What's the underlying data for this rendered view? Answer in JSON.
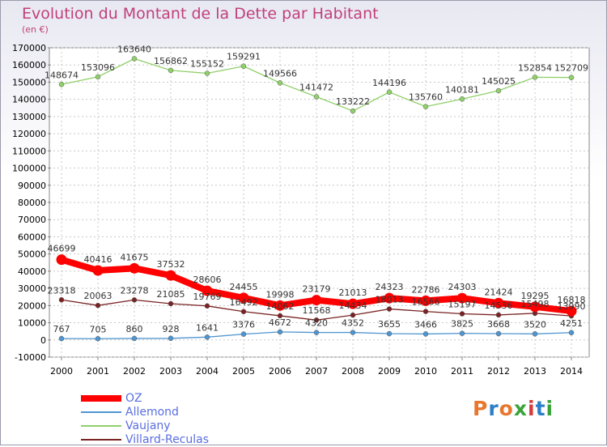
{
  "header": {
    "title": "Evolution du Montant de la Dette par Habitant",
    "subtitle": "(en €)"
  },
  "logo": {
    "text": "Proxiti",
    "colors": [
      "#e8772e",
      "#2a7fc8",
      "#e8772e",
      "#3aa33a",
      "#d83a3a",
      "#2a7fc8",
      "#3aa33a"
    ]
  },
  "chart_data": {
    "type": "line",
    "x": [
      "2000",
      "2001",
      "2002",
      "2003",
      "2004",
      "2005",
      "2006",
      "2007",
      "2008",
      "2009",
      "2010",
      "2011",
      "2012",
      "2013",
      "2014"
    ],
    "ylim": [
      -10000,
      170000
    ],
    "yticks": [
      -10000,
      0,
      10000,
      20000,
      30000,
      40000,
      50000,
      60000,
      70000,
      80000,
      90000,
      100000,
      110000,
      120000,
      130000,
      140000,
      150000,
      160000,
      170000
    ],
    "grid": true,
    "legend_position": "bottom-left",
    "series": [
      {
        "name": "OZ",
        "color": "#ff0000",
        "values": [
          46699,
          40416,
          41675,
          37532,
          28606,
          24455,
          19998,
          23179,
          21013,
          24323,
          22786,
          24303,
          21424,
          19295,
          16818
        ]
      },
      {
        "name": "Allemond",
        "color": "#4f95d0",
        "values": [
          767,
          705,
          860,
          928,
          1641,
          3376,
          4672,
          4320,
          4352,
          3655,
          3466,
          3825,
          3668,
          3520,
          4251
        ]
      },
      {
        "name": "Vaujany",
        "color": "#90d06a",
        "values": [
          148674,
          153096,
          163640,
          156862,
          155152,
          159291,
          149566,
          141472,
          133222,
          144196,
          135760,
          140181,
          145025,
          152854,
          152709
        ]
      },
      {
        "name": "Villard-Reculas",
        "color": "#7a2323",
        "values": [
          23318,
          20063,
          23278,
          21085,
          19769,
          16492,
          14062,
          11568,
          14434,
          18013,
          16566,
          15197,
          14536,
          15498,
          13990
        ]
      }
    ]
  }
}
